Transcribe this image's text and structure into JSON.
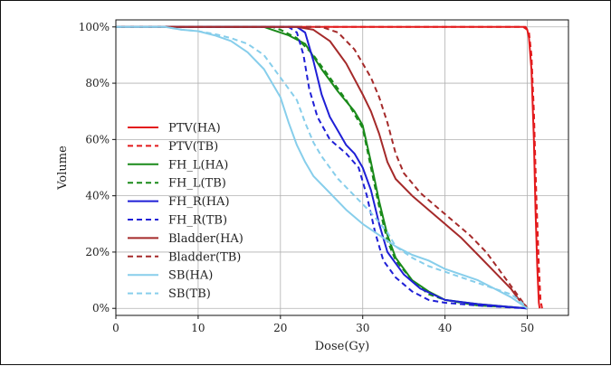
{
  "chart_data": {
    "type": "line",
    "xlabel": "Dose(Gy)",
    "ylabel": "Volume",
    "xlim": [
      0,
      55
    ],
    "ylim": [
      -2.5,
      102.5
    ],
    "x_ticks": [
      "0",
      "10",
      "20",
      "30",
      "40",
      "50"
    ],
    "y_ticks": [
      "0%",
      "20%",
      "40%",
      "60%",
      "80%",
      "100%"
    ],
    "grid": true,
    "legend_position": "center-left",
    "series": [
      {
        "name": "PTV(HA)",
        "color": "#e31a1c",
        "dash": "solid",
        "points": [
          [
            0,
            100
          ],
          [
            47,
            100
          ],
          [
            49.5,
            100
          ],
          [
            50,
            99
          ],
          [
            50.2,
            96
          ],
          [
            50.5,
            85
          ],
          [
            50.8,
            60
          ],
          [
            51,
            35
          ],
          [
            51.2,
            15
          ],
          [
            51.4,
            2
          ],
          [
            51.5,
            0
          ]
        ]
      },
      {
        "name": "PTV(TB)",
        "color": "#e31a1c",
        "dash": "dashed",
        "points": [
          [
            0,
            100
          ],
          [
            48,
            100
          ],
          [
            49.8,
            100
          ],
          [
            50.2,
            98
          ],
          [
            50.5,
            90
          ],
          [
            50.8,
            70
          ],
          [
            51.1,
            40
          ],
          [
            51.4,
            15
          ],
          [
            51.6,
            3
          ],
          [
            51.8,
            0
          ]
        ]
      },
      {
        "name": "FH_L(HA)",
        "color": "#1a8a1a",
        "dash": "solid",
        "points": [
          [
            0,
            100
          ],
          [
            18,
            100
          ],
          [
            19,
            99
          ],
          [
            21,
            97
          ],
          [
            23,
            94
          ],
          [
            25,
            85
          ],
          [
            27,
            77
          ],
          [
            29,
            70
          ],
          [
            30,
            65
          ],
          [
            31,
            52
          ],
          [
            32,
            38
          ],
          [
            33,
            26
          ],
          [
            34,
            18
          ],
          [
            36,
            10
          ],
          [
            38,
            6
          ],
          [
            40,
            3
          ],
          [
            44,
            1.5
          ],
          [
            48,
            0.5
          ],
          [
            50,
            0
          ]
        ]
      },
      {
        "name": "FH_L(TB)",
        "color": "#1a8a1a",
        "dash": "dashed",
        "points": [
          [
            0,
            100
          ],
          [
            19,
            100
          ],
          [
            20,
            99
          ],
          [
            22,
            96
          ],
          [
            24,
            90
          ],
          [
            26,
            82
          ],
          [
            28,
            74
          ],
          [
            30,
            64
          ],
          [
            31,
            50
          ],
          [
            32,
            36
          ],
          [
            33,
            24
          ],
          [
            34,
            17
          ],
          [
            36,
            10
          ],
          [
            38,
            5
          ],
          [
            40,
            3
          ],
          [
            44,
            1
          ],
          [
            48,
            0.5
          ],
          [
            50,
            0
          ]
        ]
      },
      {
        "name": "FH_R(HA)",
        "color": "#1f1fd6",
        "dash": "solid",
        "points": [
          [
            0,
            100
          ],
          [
            22,
            100
          ],
          [
            23,
            98
          ],
          [
            24,
            88
          ],
          [
            25,
            76
          ],
          [
            26,
            68
          ],
          [
            27,
            63
          ],
          [
            28,
            58
          ],
          [
            29,
            55
          ],
          [
            30,
            50
          ],
          [
            31,
            42
          ],
          [
            32,
            30
          ],
          [
            33,
            20
          ],
          [
            35,
            12
          ],
          [
            37,
            7
          ],
          [
            40,
            3
          ],
          [
            44,
            1.5
          ],
          [
            48,
            0.5
          ],
          [
            50,
            0
          ]
        ]
      },
      {
        "name": "FH_R(TB)",
        "color": "#1f1fd6",
        "dash": "dashed",
        "points": [
          [
            0,
            100
          ],
          [
            21,
            100
          ],
          [
            22,
            98
          ],
          [
            22.8,
            90
          ],
          [
            23.5,
            78
          ],
          [
            24.5,
            68
          ],
          [
            26,
            60
          ],
          [
            28,
            55
          ],
          [
            29.5,
            50
          ],
          [
            30.5,
            40
          ],
          [
            31.5,
            27
          ],
          [
            32.5,
            17
          ],
          [
            34,
            11
          ],
          [
            36,
            6
          ],
          [
            38,
            3
          ],
          [
            40,
            2
          ],
          [
            44,
            1
          ],
          [
            48,
            0.3
          ],
          [
            50,
            0
          ]
        ]
      },
      {
        "name": "Bladder(HA)",
        "color": "#a52a2a",
        "dash": "solid",
        "points": [
          [
            0,
            100
          ],
          [
            20,
            100
          ],
          [
            22,
            100
          ],
          [
            24,
            99
          ],
          [
            26,
            95
          ],
          [
            28,
            87
          ],
          [
            30,
            76
          ],
          [
            31,
            70
          ],
          [
            32,
            62
          ],
          [
            33,
            52
          ],
          [
            34,
            46
          ],
          [
            36,
            40
          ],
          [
            38,
            35
          ],
          [
            40,
            30
          ],
          [
            42,
            25
          ],
          [
            44,
            19
          ],
          [
            46,
            13
          ],
          [
            48,
            7
          ],
          [
            49,
            3
          ],
          [
            49.8,
            1
          ],
          [
            50,
            0
          ]
        ]
      },
      {
        "name": "Bladder(TB)",
        "color": "#a52a2a",
        "dash": "dashed",
        "points": [
          [
            0,
            100
          ],
          [
            23,
            100
          ],
          [
            25,
            100
          ],
          [
            27,
            98
          ],
          [
            29,
            92
          ],
          [
            31,
            82
          ],
          [
            32,
            75
          ],
          [
            33,
            66
          ],
          [
            34,
            55
          ],
          [
            35,
            48
          ],
          [
            37,
            41
          ],
          [
            39,
            36
          ],
          [
            41,
            31
          ],
          [
            43,
            26
          ],
          [
            45,
            20
          ],
          [
            47,
            12
          ],
          [
            48.5,
            6
          ],
          [
            49.5,
            2
          ],
          [
            50,
            0
          ]
        ]
      },
      {
        "name": "SB(HA)",
        "color": "#87ceeb",
        "dash": "solid",
        "points": [
          [
            0,
            100
          ],
          [
            6,
            100
          ],
          [
            8,
            99
          ],
          [
            10,
            98.5
          ],
          [
            12,
            97
          ],
          [
            14,
            95
          ],
          [
            16,
            91
          ],
          [
            18,
            85
          ],
          [
            20,
            75
          ],
          [
            21,
            66
          ],
          [
            22,
            58
          ],
          [
            23,
            52
          ],
          [
            24,
            47
          ],
          [
            26,
            41
          ],
          [
            28,
            35
          ],
          [
            30,
            30
          ],
          [
            32,
            26
          ],
          [
            34,
            22
          ],
          [
            36,
            19
          ],
          [
            38,
            17
          ],
          [
            40,
            14
          ],
          [
            42,
            12
          ],
          [
            44,
            10
          ],
          [
            46,
            7
          ],
          [
            48,
            4
          ],
          [
            49,
            2
          ],
          [
            50,
            0
          ]
        ]
      },
      {
        "name": "SB(TB)",
        "color": "#87ceeb",
        "dash": "dashed",
        "points": [
          [
            0,
            100
          ],
          [
            6,
            100
          ],
          [
            8,
            99
          ],
          [
            10,
            98.5
          ],
          [
            12,
            97.5
          ],
          [
            14,
            96
          ],
          [
            16,
            94
          ],
          [
            18,
            90
          ],
          [
            20,
            82
          ],
          [
            22,
            74
          ],
          [
            23,
            66
          ],
          [
            24,
            59
          ],
          [
            25,
            54
          ],
          [
            27,
            46
          ],
          [
            29,
            40
          ],
          [
            31,
            34
          ],
          [
            33,
            27
          ],
          [
            34,
            22
          ],
          [
            36,
            18
          ],
          [
            38,
            15
          ],
          [
            40,
            13
          ],
          [
            42,
            11
          ],
          [
            44,
            9
          ],
          [
            46,
            7
          ],
          [
            48,
            5
          ],
          [
            49,
            3
          ],
          [
            50,
            0
          ]
        ]
      }
    ]
  }
}
